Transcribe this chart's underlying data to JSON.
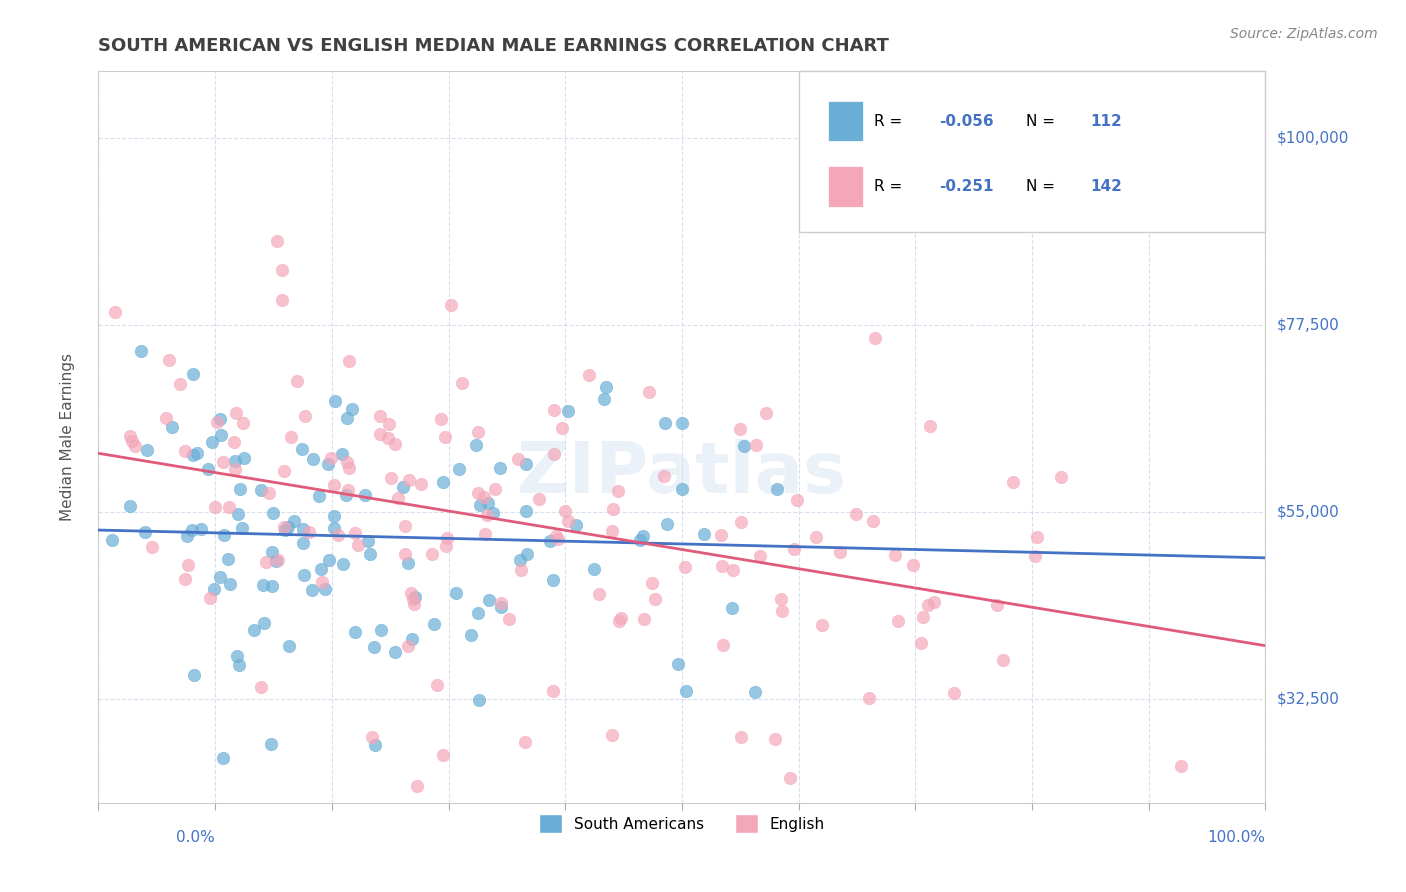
{
  "title": "SOUTH AMERICAN VS ENGLISH MEDIAN MALE EARNINGS CORRELATION CHART",
  "source": "Source: ZipAtlas.com",
  "ylabel": "Median Male Earnings",
  "yticks": [
    32500,
    55000,
    77500,
    100000
  ],
  "ytick_labels": [
    "$32,500",
    "$55,000",
    "$77,500",
    "$100,000"
  ],
  "watermark": "ZIPatlas",
  "legend_v1": "-0.056",
  "legend_n1v": "112",
  "legend_v2": "-0.251",
  "legend_n2v": "142",
  "blue_color": "#6aaed6",
  "pink_color": "#f4a7b9",
  "blue_line_color": "#4472c4",
  "pink_line_color": "#e05a7a",
  "title_color": "#404040",
  "axis_label_color": "#4472c4",
  "background_color": "#ffffff",
  "grid_color": "#d0d8e8",
  "blue_n": 112,
  "pink_n": 142,
  "xmin": 0.0,
  "xmax": 1.0,
  "ymin": 20000,
  "ymax": 108000
}
